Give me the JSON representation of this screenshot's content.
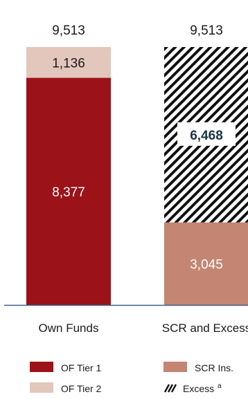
{
  "chart_data": {
    "type": "bar",
    "stacked": true,
    "categories": [
      "Own Funds",
      "SCR and Excess"
    ],
    "ylim": [
      0,
      9513
    ],
    "totals": [
      "9,513",
      "9,513"
    ],
    "series": [
      {
        "name": "OF Tier 1",
        "color": "#9b1218",
        "pattern": "solid",
        "values": [
          8377,
          0
        ],
        "labels": [
          "8,377",
          ""
        ],
        "label_color": "#ffffff",
        "label_bold": false,
        "label_box": false
      },
      {
        "name": "OF Tier 2",
        "color": "#e3c6bc",
        "pattern": "solid",
        "values": [
          1136,
          0
        ],
        "labels": [
          "1,136",
          ""
        ],
        "label_color": "#1a1a1a",
        "label_bold": false,
        "label_box": false
      },
      {
        "name": "SCR Ins.",
        "color": "#c48572",
        "pattern": "solid",
        "values": [
          0,
          3045
        ],
        "labels": [
          "",
          "3,045"
        ],
        "label_color": "#ffffff",
        "label_bold": false,
        "label_box": false
      },
      {
        "name": "Excess",
        "name_superscript": "a",
        "color": "#111111",
        "pattern": "hatch",
        "values": [
          0,
          6468
        ],
        "labels": [
          "",
          "6,468"
        ],
        "label_color": "#1a3347",
        "label_bold": true,
        "label_box": true
      }
    ],
    "legend": [
      {
        "label": "OF Tier 1",
        "swatch": "#9b1218",
        "pattern": "solid",
        "sup": ""
      },
      {
        "label": "OF Tier 2",
        "swatch": "#e3c6bc",
        "pattern": "solid",
        "sup": ""
      },
      {
        "label": "SCR Ins.",
        "swatch": "#c48572",
        "pattern": "solid",
        "sup": ""
      },
      {
        "label": "Excess",
        "swatch": "#111111",
        "pattern": "hatch",
        "sup": "a"
      }
    ],
    "axis_color": "#3b5f8a",
    "legend_position": "bottom"
  }
}
